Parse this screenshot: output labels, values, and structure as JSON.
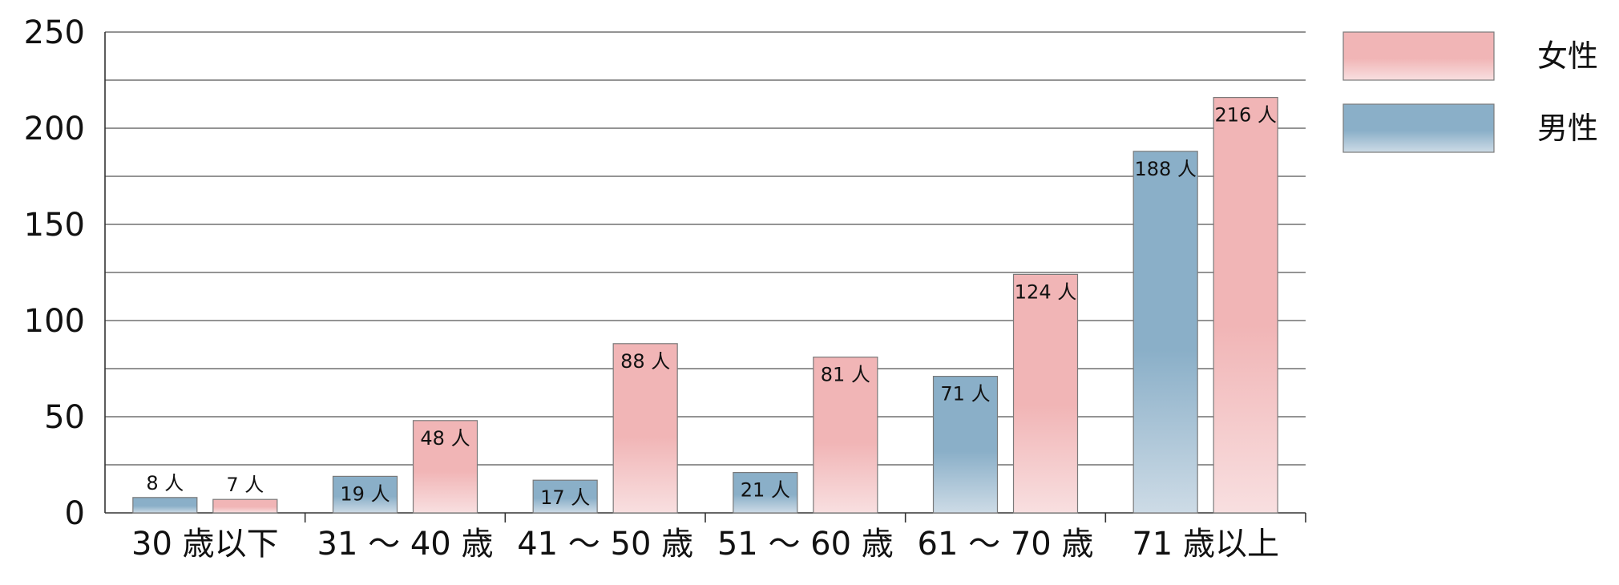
{
  "chart_data": {
    "type": "bar",
    "title": "",
    "xlabel": "",
    "ylabel": "",
    "ylim": [
      0,
      250
    ],
    "yticks": [
      0,
      50,
      100,
      150,
      200,
      250
    ],
    "grid": true,
    "legend_position": "top-right",
    "categories": [
      "30 歳以下",
      "31 ～ 40 歳",
      "41 ～ 50 歳",
      "51 ～ 60 歳",
      "61 ～ 70 歳",
      "71 歳以上"
    ],
    "series": [
      {
        "name": "男性",
        "values": [
          8,
          19,
          17,
          21,
          71,
          188
        ],
        "labels": [
          "8 人",
          "19 人",
          "17 人",
          "21 人",
          "71 人",
          "188 人"
        ],
        "color_top": "#8aafc8",
        "color_bottom": "#cddbe6"
      },
      {
        "name": "女性",
        "values": [
          7,
          48,
          88,
          81,
          124,
          216
        ],
        "labels": [
          "7 人",
          "48 人",
          "88 人",
          "81 人",
          "124 人",
          "216 人"
        ],
        "color_top": "#f1b5b6",
        "color_bottom": "#f8dfe0"
      }
    ],
    "legend_order": [
      "女性",
      "男性"
    ]
  }
}
